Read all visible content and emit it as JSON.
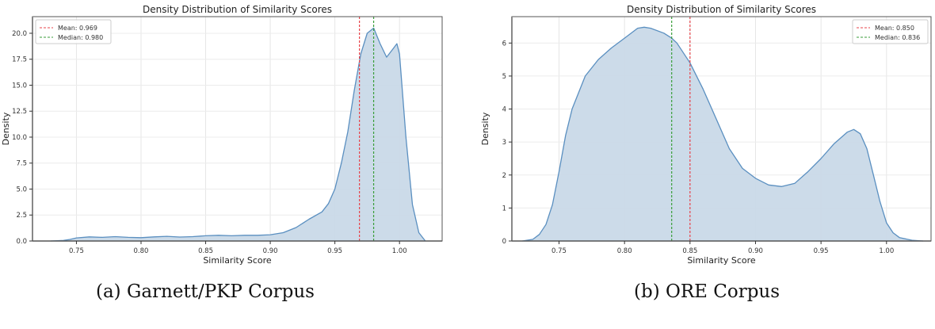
{
  "chart_data": [
    {
      "type": "area",
      "subtype": "kde-density",
      "title": "Density Distribution of Similarity Scores",
      "xlabel": "Similarity Score",
      "ylabel": "Density",
      "xlim": [
        0.716,
        1.033
      ],
      "ylim": [
        0,
        21.6
      ],
      "xticks": [
        "0.75",
        "0.80",
        "0.85",
        "0.90",
        "0.95",
        "1.00"
      ],
      "yticks": [
        "0.0",
        "2.5",
        "5.0",
        "7.5",
        "10.0",
        "12.5",
        "15.0",
        "17.5",
        "20.0"
      ],
      "grid": true,
      "legend_position": "upper left",
      "fill_color": "#c9d9e8",
      "line_color": "#5a8fc0",
      "series": [
        {
          "name": "density",
          "x": [
            0.73,
            0.74,
            0.745,
            0.75,
            0.76,
            0.77,
            0.78,
            0.79,
            0.8,
            0.81,
            0.82,
            0.83,
            0.84,
            0.85,
            0.86,
            0.87,
            0.88,
            0.89,
            0.9,
            0.91,
            0.92,
            0.93,
            0.94,
            0.945,
            0.95,
            0.955,
            0.96,
            0.965,
            0.97,
            0.975,
            0.98,
            0.985,
            0.99,
            0.995,
            0.998,
            1.0,
            1.005,
            1.01,
            1.015,
            1.02
          ],
          "y": [
            0.0,
            0.05,
            0.15,
            0.3,
            0.4,
            0.35,
            0.42,
            0.35,
            0.32,
            0.4,
            0.45,
            0.38,
            0.42,
            0.5,
            0.55,
            0.5,
            0.55,
            0.55,
            0.6,
            0.8,
            1.3,
            2.1,
            2.8,
            3.6,
            5.0,
            7.5,
            10.5,
            14.5,
            18.0,
            20.0,
            20.5,
            19.0,
            17.7,
            18.5,
            19.0,
            18.0,
            10.0,
            3.5,
            0.8,
            0.0
          ]
        }
      ],
      "reference_lines": [
        {
          "label": "Mean: 0.969",
          "x": 0.969,
          "color": "#e8434a",
          "style": "dashed"
        },
        {
          "label": "Median: 0.980",
          "x": 0.98,
          "color": "#3a9e3a",
          "style": "dashed"
        }
      ],
      "caption": "(a) Garnett/PKP Corpus"
    },
    {
      "type": "area",
      "subtype": "kde-density",
      "title": "Density Distribution of Similarity Scores",
      "xlabel": "Similarity Score",
      "ylabel": "Density",
      "xlim": [
        0.714,
        1.034
      ],
      "ylim": [
        0,
        6.8
      ],
      "xticks": [
        "0.75",
        "0.80",
        "0.85",
        "0.90",
        "0.95",
        "1.00"
      ],
      "yticks": [
        "0",
        "1",
        "2",
        "3",
        "4",
        "5",
        "6"
      ],
      "grid": true,
      "legend_position": "upper right",
      "fill_color": "#c9d9e8",
      "line_color": "#5a8fc0",
      "series": [
        {
          "name": "density",
          "x": [
            0.722,
            0.73,
            0.735,
            0.74,
            0.745,
            0.75,
            0.755,
            0.76,
            0.77,
            0.78,
            0.79,
            0.8,
            0.81,
            0.815,
            0.82,
            0.83,
            0.836,
            0.84,
            0.85,
            0.86,
            0.87,
            0.88,
            0.89,
            0.9,
            0.91,
            0.92,
            0.93,
            0.94,
            0.95,
            0.96,
            0.97,
            0.975,
            0.98,
            0.985,
            0.99,
            0.995,
            1.0,
            1.005,
            1.01,
            1.02,
            1.028
          ],
          "y": [
            0.0,
            0.05,
            0.2,
            0.5,
            1.1,
            2.1,
            3.2,
            4.0,
            5.0,
            5.5,
            5.85,
            6.15,
            6.45,
            6.48,
            6.45,
            6.3,
            6.15,
            6.0,
            5.4,
            4.6,
            3.7,
            2.8,
            2.2,
            1.9,
            1.7,
            1.65,
            1.75,
            2.1,
            2.5,
            2.95,
            3.3,
            3.38,
            3.25,
            2.8,
            2.0,
            1.2,
            0.55,
            0.25,
            0.1,
            0.02,
            0.0
          ]
        }
      ],
      "reference_lines": [
        {
          "label": "Mean: 0.850",
          "x": 0.85,
          "color": "#e8434a",
          "style": "dashed"
        },
        {
          "label": "Median: 0.836",
          "x": 0.836,
          "color": "#3a9e3a",
          "style": "dashed"
        }
      ],
      "caption": "(b) ORE Corpus"
    }
  ],
  "panels": {
    "a": {
      "title": "Density Distribution of Similarity Scores",
      "xlabel": "Similarity Score",
      "ylabel": "Density",
      "legend": {
        "mean": "Mean: 0.969",
        "median": "Median: 0.980"
      },
      "caption": "(a) Garnett/PKP Corpus"
    },
    "b": {
      "title": "Density Distribution of Similarity Scores",
      "xlabel": "Similarity Score",
      "ylabel": "Density",
      "legend": {
        "mean": "Mean: 0.850",
        "median": "Median: 0.836"
      },
      "caption": "(b) ORE Corpus"
    }
  }
}
